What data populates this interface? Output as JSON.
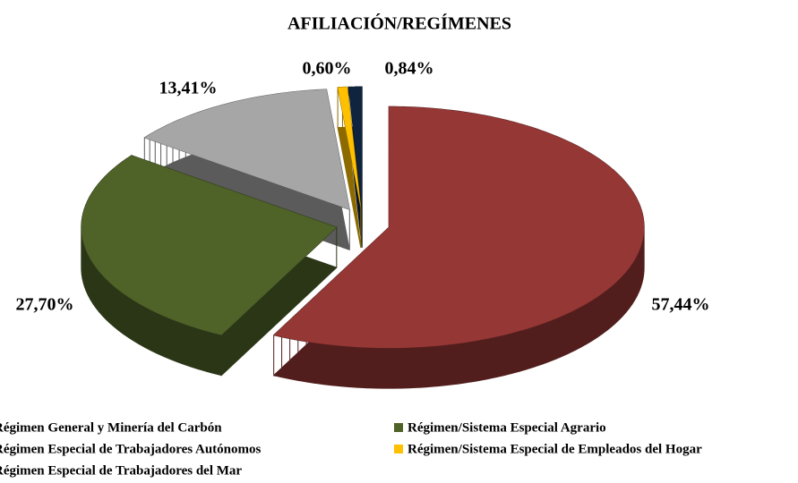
{
  "chart_data": {
    "type": "pie",
    "title": "AFILIACIÓN/REGÍMENES",
    "categories": [
      "Régimen General y Minería del Carbón",
      "Régimen/Sistema Especial Agrario",
      "Régimen Especial de Trabajadores Autónomos",
      "Régimen/Sistema Especial de Empleados del Hogar",
      "Régimen Especial de Trabajadores del Mar"
    ],
    "values": [
      57.44,
      27.7,
      13.41,
      0.6,
      0.84
    ],
    "value_labels": [
      "57,44%",
      "27,70%",
      "13,41%",
      "0,60%",
      "0,84%"
    ],
    "colors": [
      "#953735",
      "#4f6228",
      "#a6a6a6",
      "#ffc000",
      "#0f243e"
    ]
  }
}
